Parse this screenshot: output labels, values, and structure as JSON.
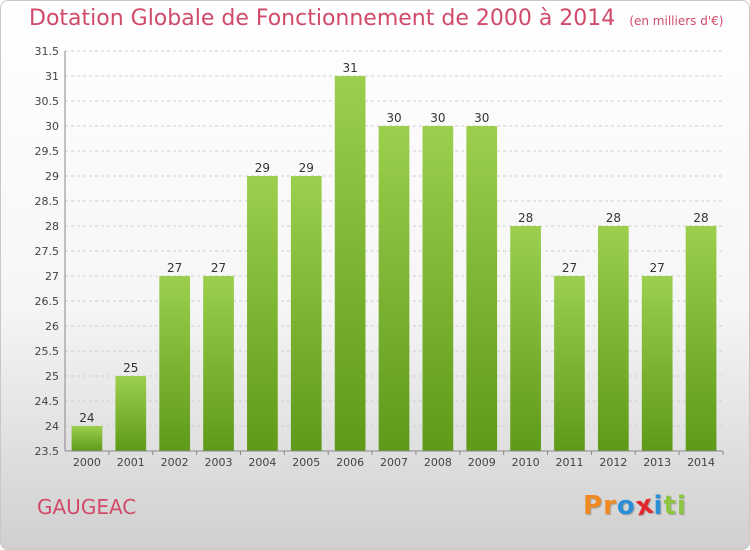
{
  "title": "Dotation Globale de Fonctionnement de 2000 à 2014",
  "unit_note": "(en milliers d'€)",
  "commune": "GAUGEAC",
  "logo": {
    "text": "Proxiti",
    "colors": [
      "#f08a20",
      "#f08a20",
      "#2a8fd6",
      "#e2262b",
      "#2a8fd6",
      "#8cc63f",
      "#8cc63f"
    ]
  },
  "chart_data": {
    "type": "bar",
    "title": "Dotation Globale de Fonctionnement de 2000 à 2014",
    "subtitle": "(en milliers d'€)",
    "xlabel": "",
    "ylabel": "",
    "categories": [
      "2000",
      "2001",
      "2002",
      "2003",
      "2004",
      "2005",
      "2006",
      "2007",
      "2008",
      "2009",
      "2010",
      "2011",
      "2012",
      "2013",
      "2014"
    ],
    "values": [
      24,
      25,
      27,
      27,
      29,
      29,
      31,
      30,
      30,
      30,
      28,
      27,
      28,
      27,
      28
    ],
    "ylim": [
      23.5,
      31.5
    ],
    "yticks": [
      "23.5",
      "24",
      "24.5",
      "25",
      "25.5",
      "26",
      "26.5",
      "27",
      "27.5",
      "28",
      "28.5",
      "29",
      "29.5",
      "30",
      "30.5",
      "31",
      "31.5"
    ],
    "grid": "horizontal-dashed",
    "bar_color_top": "#9ccf4e",
    "bar_color_bottom": "#5e9a18"
  }
}
